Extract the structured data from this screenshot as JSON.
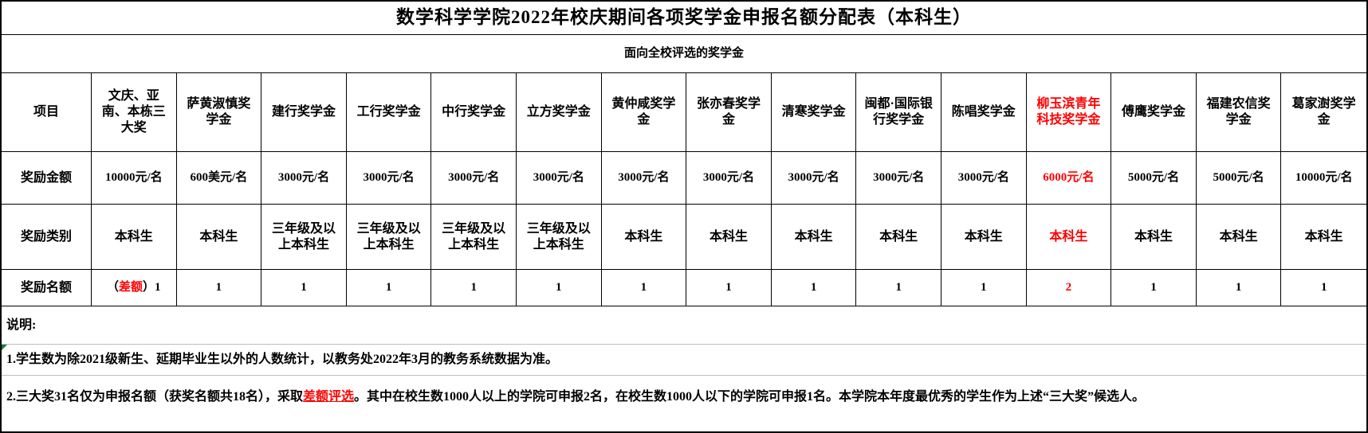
{
  "title": "数学科学学院2022年校庆期间各项奖学金申报名额分配表（本科生）",
  "subtitle": "面向全校评选的奖学金",
  "accent_red": "#ff0000",
  "row_labels": {
    "project": "项目",
    "amount": "奖励金额",
    "category": "奖励类别",
    "quota": "奖励名额"
  },
  "columns": [
    {
      "name": "文庆、亚南、本栋三大奖",
      "amount": "10000元/名",
      "category": "本科生",
      "quota_segments": [
        {
          "text": "（"
        },
        {
          "text": "差额",
          "red": true
        },
        {
          "text": "）1"
        }
      ]
    },
    {
      "name": "萨黄淑慎奖学金",
      "amount": "600美元/名",
      "category": "本科生",
      "quota": "1"
    },
    {
      "name": "建行奖学金",
      "amount": "3000元/名",
      "category": "三年级及以上本科生",
      "quota": "1"
    },
    {
      "name": "工行奖学金",
      "amount": "3000元/名",
      "category": "三年级及以上本科生",
      "quota": "1"
    },
    {
      "name": "中行奖学金",
      "amount": "3000元/名",
      "category": "三年级及以上本科生",
      "quota": "1"
    },
    {
      "name": "立方奖学金",
      "amount": "3000元/名",
      "category": "三年级及以上本科生",
      "quota": "1"
    },
    {
      "name": "黄仲咸奖学金",
      "amount": "3000元/名",
      "category": "本科生",
      "quota": "1"
    },
    {
      "name": "张亦春奖学金",
      "amount": "3000元/名",
      "category": "本科生",
      "quota": "1"
    },
    {
      "name": "清寒奖学金",
      "amount": "3000元/名",
      "category": "本科生",
      "quota": "1"
    },
    {
      "name": "闽都·国际银行奖学金",
      "amount": "3000元/名",
      "category": "本科生",
      "quota": "1"
    },
    {
      "name": "陈唱奖学金",
      "amount": "3000元/名",
      "category": "本科生",
      "quota": "1"
    },
    {
      "name": "柳玉滨青年科技奖学金",
      "name_red": true,
      "amount": "6000元/名",
      "amount_red": true,
      "category": "本科生",
      "category_red": true,
      "quota": "2",
      "quota_red": true
    },
    {
      "name": "傅鹰奖学金",
      "amount": "5000元/名",
      "category": "本科生",
      "quota": "1"
    },
    {
      "name": "福建农信奖学金",
      "amount": "5000元/名",
      "category": "本科生",
      "quota": "1"
    },
    {
      "name": "葛家澍奖学金",
      "amount": "10000元/名",
      "category": "本科生",
      "quota": "1"
    }
  ],
  "notes": {
    "label": "说明:",
    "items": [
      {
        "segments": [
          {
            "text": "1.学生数为除2021级新生、延期毕业生以外的人数统计，以教务处2022年3月的教务系统数据为准。"
          }
        ]
      },
      {
        "segments": [
          {
            "text": "2.三大奖31名仅为申报名额（获奖名额共18名），采取"
          },
          {
            "text": "差额评选",
            "red": true,
            "underline": true
          },
          {
            "text": "。其中在校生数1000人以上的学院可申报2名，在校生数1000人以下的学院可申报1名。本学院本年度最优秀的学生作为上述“三大奖”候选人。"
          }
        ]
      }
    ]
  }
}
